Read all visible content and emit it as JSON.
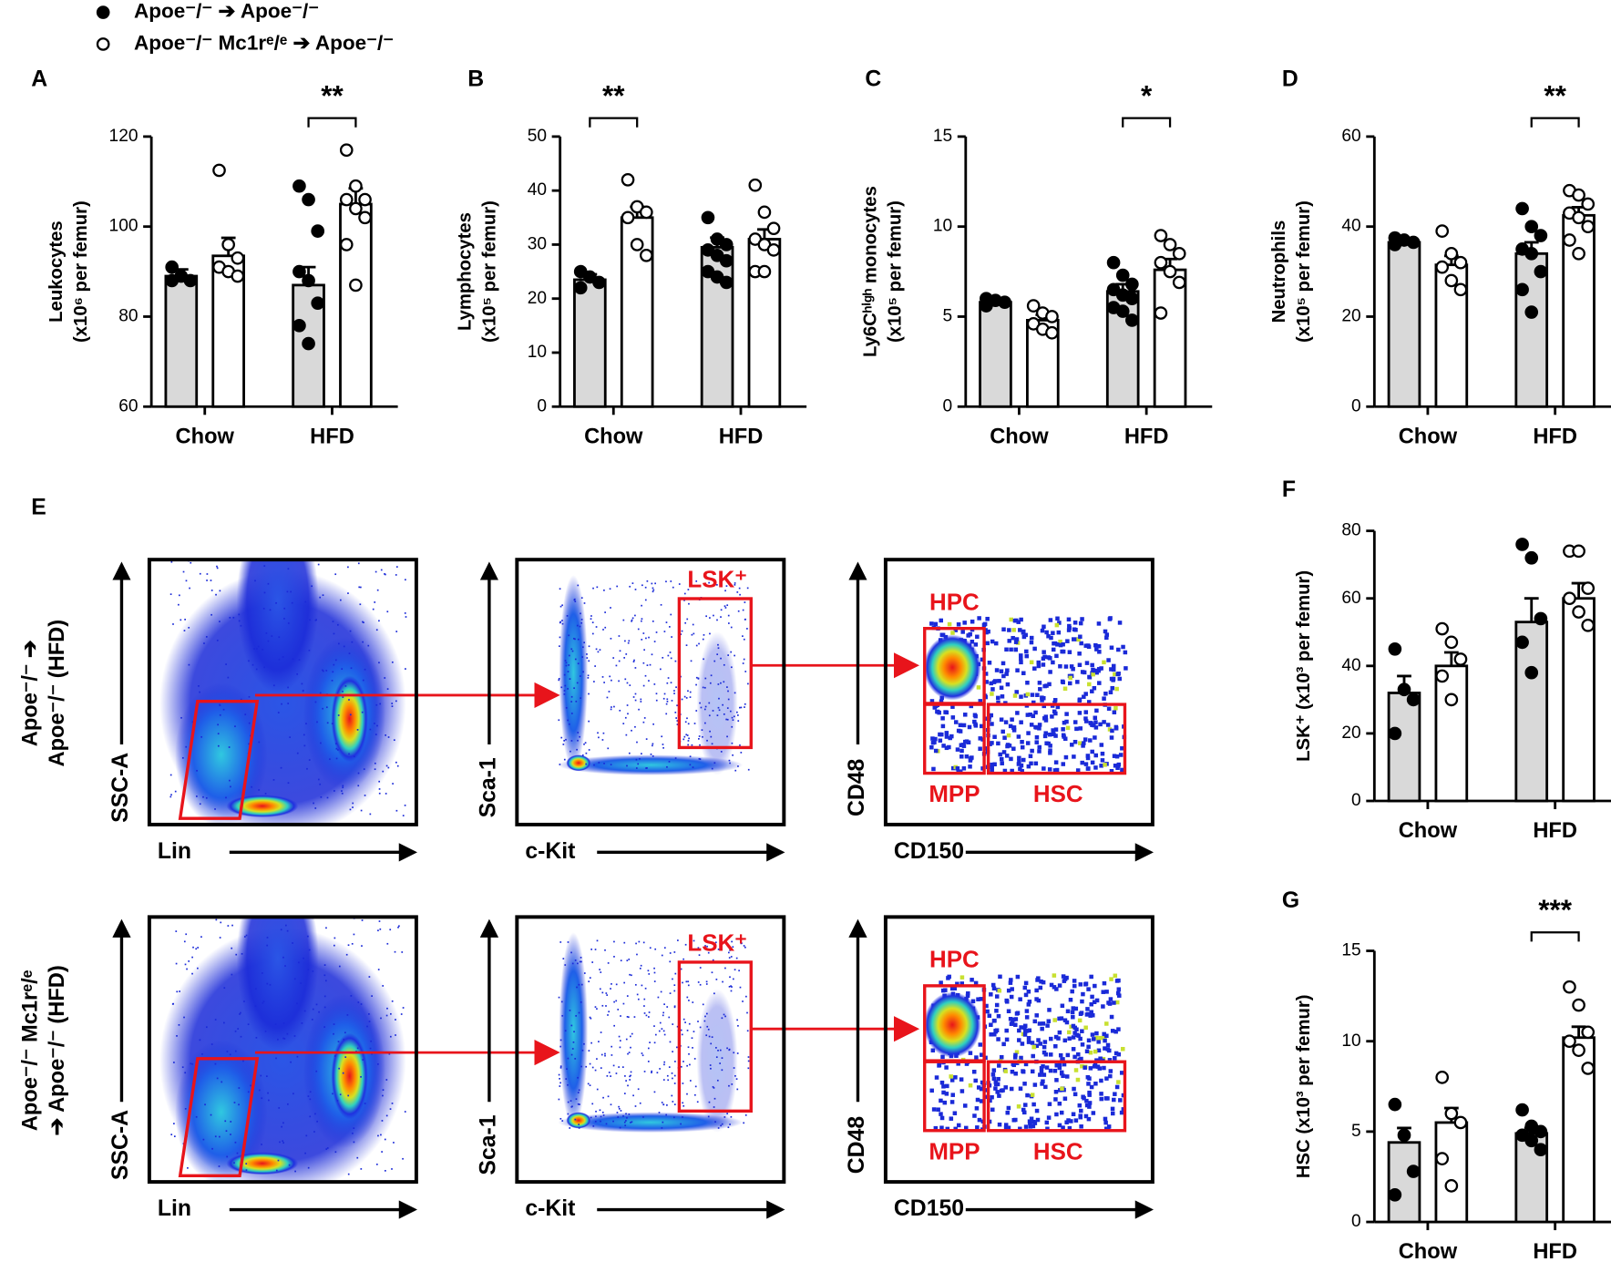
{
  "legend": [
    {
      "name": "Apoe⁻/⁻ ➔ Apoe⁻/⁻",
      "fill": "filled"
    },
    {
      "name": "Apoe⁻/⁻ Mc1rᵉ/ᵉ ➔ Apoe⁻/⁻",
      "fill": "hollow"
    }
  ],
  "chart_data": [
    {
      "type": "bar",
      "panel": "A",
      "ylabel": [
        "Leukocytes",
        "(x10⁶ per femur)"
      ],
      "categories": [
        "Chow",
        "HFD"
      ],
      "ylim": [
        60,
        120
      ],
      "yticks": [
        60,
        80,
        100,
        120
      ],
      "series": [
        {
          "fill": "filled",
          "color": "#d9d9d9",
          "values": [
            89,
            87
          ],
          "errors": [
            1.5,
            4
          ],
          "points": [
            [
              91,
              89,
              88,
              88
            ],
            [
              109,
              106,
              99,
              90,
              88,
              83,
              78,
              74
            ]
          ]
        },
        {
          "fill": "hollow",
          "color": "#ffffff",
          "values": [
            93.5,
            105
          ],
          "errors": [
            4,
            3.5
          ],
          "points": [
            [
              112.5,
              96,
              93,
              91,
              90,
              89
            ],
            [
              117,
              109,
              106,
              106,
              104,
              102,
              96,
              87
            ]
          ]
        }
      ],
      "annotations": [
        {
          "text": "**",
          "category": 1
        }
      ]
    },
    {
      "type": "bar",
      "panel": "B",
      "ylabel": [
        "Lymphocytes",
        "(x10⁵ per femur)"
      ],
      "categories": [
        "Chow",
        "HFD"
      ],
      "ylim": [
        0,
        50
      ],
      "yticks": [
        0,
        10,
        20,
        30,
        40,
        50
      ],
      "series": [
        {
          "fill": "filled",
          "color": "#d9d9d9",
          "values": [
            23.5,
            29.5
          ],
          "errors": [
            1,
            1.8
          ],
          "points": [
            [
              25,
              24,
              23,
              22
            ],
            [
              35,
              31,
              30,
              29,
              28,
              27,
              25,
              24,
              23
            ]
          ]
        },
        {
          "fill": "hollow",
          "color": "#ffffff",
          "values": [
            35,
            31
          ],
          "errors": [
            2,
            1.8
          ],
          "points": [
            [
              42,
              37,
              36,
              35,
              30,
              28
            ],
            [
              41,
              36,
              33,
              31,
              30,
              29,
              25,
              25
            ]
          ]
        }
      ],
      "annotations": [
        {
          "text": "**",
          "category": 0
        }
      ]
    },
    {
      "type": "bar",
      "panel": "C",
      "ylabel": [
        "Ly6Cʰⁱᵍʰ monocytes",
        "(x10⁵ per femur)"
      ],
      "categories": [
        "Chow",
        "HFD"
      ],
      "ylim": [
        0,
        15
      ],
      "yticks": [
        0,
        5,
        10,
        15
      ],
      "series": [
        {
          "fill": "filled",
          "color": "#d9d9d9",
          "values": [
            5.8,
            6.4
          ],
          "errors": [
            0.1,
            0.4
          ],
          "points": [
            [
              6,
              5.9,
              5.8,
              5.6
            ],
            [
              8,
              7.3,
              6.8,
              6.5,
              6.2,
              6,
              5.5,
              5.3,
              4.8
            ]
          ]
        },
        {
          "fill": "hollow",
          "color": "#ffffff",
          "values": [
            4.8,
            7.6
          ],
          "errors": [
            0.3,
            0.6
          ],
          "points": [
            [
              5.6,
              5.2,
              5,
              4.6,
              4.3,
              4.1
            ],
            [
              9.5,
              9,
              8.5,
              8,
              7.5,
              6.9,
              5.2
            ]
          ]
        }
      ],
      "annotations": [
        {
          "text": "*",
          "category": 1
        }
      ]
    },
    {
      "type": "bar",
      "panel": "D",
      "ylabel": [
        "Neutrophils",
        "(x10⁵ per femur)"
      ],
      "categories": [
        "Chow",
        "HFD"
      ],
      "ylim": [
        0,
        60
      ],
      "yticks": [
        0,
        20,
        40,
        60
      ],
      "series": [
        {
          "fill": "filled",
          "color": "#d9d9d9",
          "values": [
            36.5,
            34
          ],
          "errors": [
            0.5,
            2.5
          ],
          "points": [
            [
              37.5,
              37,
              36.5,
              36
            ],
            [
              44,
              40,
              38,
              35,
              34,
              30,
              26,
              21
            ]
          ]
        },
        {
          "fill": "hollow",
          "color": "#ffffff",
          "values": [
            31.5,
            42.5
          ],
          "errors": [
            2,
            1.8
          ],
          "points": [
            [
              39,
              34,
              32,
              31,
              28,
              26
            ],
            [
              48,
              47,
              45,
              43,
              42,
              40,
              37,
              34
            ]
          ]
        }
      ],
      "annotations": [
        {
          "text": "**",
          "category": 1
        }
      ]
    },
    {
      "type": "bar",
      "panel": "F",
      "ylabel": [
        "LSK⁺ (x10³ per femur)"
      ],
      "categories": [
        "Chow",
        "HFD"
      ],
      "ylim": [
        0,
        80
      ],
      "yticks": [
        0,
        20,
        40,
        60,
        80
      ],
      "series": [
        {
          "fill": "filled",
          "color": "#d9d9d9",
          "values": [
            32,
            53
          ],
          "errors": [
            5,
            7
          ],
          "points": [
            [
              45,
              33,
              30,
              20
            ],
            [
              76,
              72,
              54,
              47,
              38
            ]
          ]
        },
        {
          "fill": "hollow",
          "color": "#ffffff",
          "values": [
            40,
            60
          ],
          "errors": [
            4,
            4.5
          ],
          "points": [
            [
              51,
              47,
              42,
              37,
              30
            ],
            [
              74,
              74,
              63,
              60,
              56,
              52
            ]
          ]
        }
      ],
      "annotations": []
    },
    {
      "type": "bar",
      "panel": "G",
      "ylabel": [
        "HSC (x10³ per femur)"
      ],
      "categories": [
        "Chow",
        "HFD"
      ],
      "ylim": [
        0,
        15
      ],
      "yticks": [
        0,
        5,
        10,
        15
      ],
      "series": [
        {
          "fill": "filled",
          "color": "#d9d9d9",
          "values": [
            4.4,
            4.9
          ],
          "errors": [
            0.8,
            0.3
          ],
          "points": [
            [
              6.5,
              4.8,
              2.8,
              1.5
            ],
            [
              6.2,
              5.3,
              5,
              4.8,
              4.5,
              4
            ]
          ]
        },
        {
          "fill": "hollow",
          "color": "#ffffff",
          "values": [
            5.5,
            10.2
          ],
          "errors": [
            0.8,
            0.6
          ],
          "points": [
            [
              8,
              6,
              5.5,
              3.5,
              2
            ],
            [
              13,
              12,
              10.5,
              10,
              9.5,
              8.5
            ]
          ]
        }
      ],
      "annotations": [
        {
          "text": "***",
          "category": 1
        }
      ]
    }
  ],
  "flow": {
    "panel": "E",
    "rows": [
      {
        "label": [
          "Apoe⁻/⁻ ➔",
          "Apoe⁻/⁻ (HFD)"
        ],
        "plots": [
          {
            "ylabel": "SSC-A",
            "xlabel": "Lin"
          },
          {
            "ylabel": "Sca-1",
            "xlabel": "c-Kit",
            "gates": [
              "LSK⁺"
            ]
          },
          {
            "ylabel": "CD48",
            "xlabel": "CD150",
            "gates": [
              "HPC",
              "MPP",
              "HSC"
            ]
          }
        ]
      },
      {
        "label": [
          "Apoe⁻/⁻ Mc1rᵉ/ᵉ",
          "➔ Apoe⁻/⁻ (HFD)"
        ],
        "plots": [
          {
            "ylabel": "SSC-A",
            "xlabel": "Lin"
          },
          {
            "ylabel": "Sca-1",
            "xlabel": "c-Kit",
            "gates": [
              "LSK⁺"
            ]
          },
          {
            "ylabel": "CD48",
            "xlabel": "CD150",
            "gates": [
              "HPC",
              "MPP",
              "HSC"
            ]
          }
        ]
      }
    ]
  }
}
